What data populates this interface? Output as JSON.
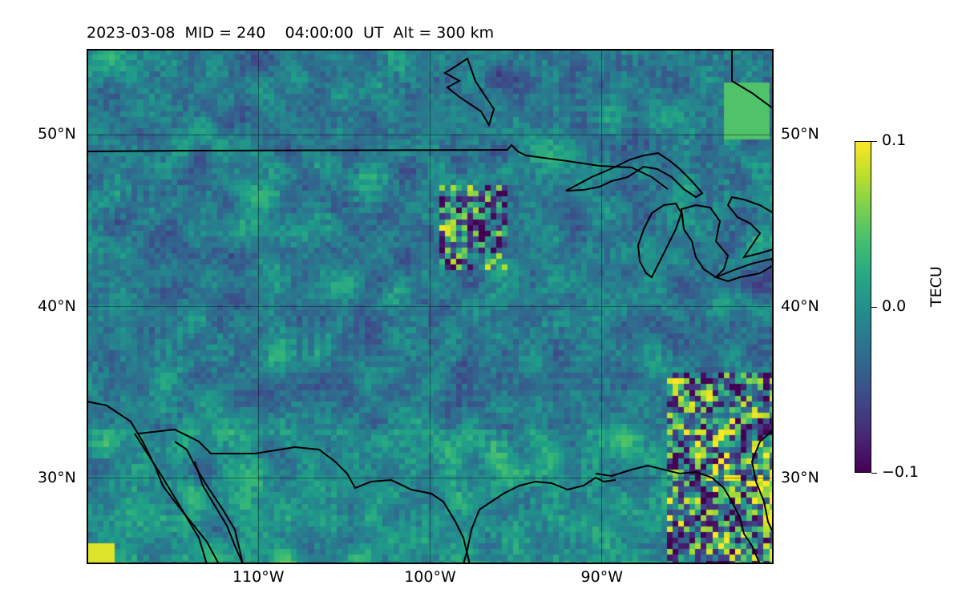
{
  "title": "2023-03-08  MID = 240    04:00:00  UT  Alt = 300 km",
  "map": {
    "extent": {
      "lon_min": -120,
      "lon_max": -80,
      "lat_min": 25,
      "lat_max": 55
    },
    "lat_ticks": [
      {
        "value": 50,
        "label": "50°N"
      },
      {
        "value": 40,
        "label": "40°N"
      },
      {
        "value": 30,
        "label": "30°N"
      }
    ],
    "lon_ticks": [
      {
        "value": -110,
        "label": "110°W"
      },
      {
        "value": -100,
        "label": "100°W"
      },
      {
        "value": -90,
        "label": "90°W"
      }
    ],
    "colormap": "viridis",
    "gridlines": true,
    "coastlines": true,
    "borders": true
  },
  "colorbar": {
    "label": "TECU",
    "vmin": -0.1,
    "vmax": 0.1,
    "ticks": [
      {
        "value": 0.1,
        "label": "0.1"
      },
      {
        "value": 0.0,
        "label": "0.0"
      },
      {
        "value": -0.1,
        "label": "−0.1"
      }
    ]
  }
}
